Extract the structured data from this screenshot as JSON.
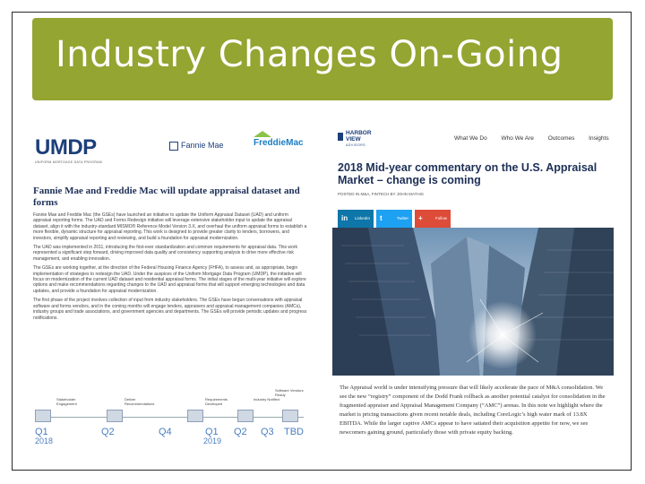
{
  "slide": {
    "title": "Industry Changes On-Going",
    "banner_color": "#94a531"
  },
  "left_panel": {
    "logos": {
      "umdp": "UMDP",
      "umdp_tagline": "UNIFORM MORTGAGE DATA PROGRAM",
      "fannie": "Fannie Mae",
      "freddie": "FreddieMac"
    },
    "heading": "Fannie Mae and Freddie Mac will update appraisal dataset and forms",
    "paragraphs": [
      "Fannie Mae and Freddie Mac (the GSEs) have launched an initiative to update the Uniform Appraisal Dataset (UAD) and uniform appraisal reporting forms. The UAD and Forms Redesign initiative will leverage extensive stakeholder input to update the appraisal dataset, align it with the industry-standard MISMO® Reference Model Version 3.X, and overhaul the uniform appraisal forms to establish a more flexible, dynamic structure for appraisal reporting. This work is designed to provide greater clarity to lenders, borrowers, and investors, simplify appraisal reporting and reviewing, and build a foundation for appraisal modernization.",
      "The UAD was implemented in 2011, introducing the first-ever standardization and common requirements for appraisal data. This work represented a significant step forward, driving improved data quality and consistency supporting analysis to drive more effective risk management, and enabling innovation.",
      "The GSEs are working together, at the direction of the Federal Housing Finance Agency (FHFA), to assess and, as appropriate, begin implementation of strategies to redesign the UAD. Under the auspices of the Uniform Mortgage Data Program (UMDP), the initiative will focus on modernization of the current UAD dataset and residential appraisal forms. The initial stages of the multi-year initiative will explore options and make recommendations regarding changes to the UAD and appraisal forms that will support emerging technologies and data updates, and provide a foundation for appraisal modernization.",
      "The first phase of the project involves collection of input from industry stakeholders. The GSEs have begun conversations with appraisal software and forms vendors, and in the coming months will engage lenders, appraisers and appraisal management companies (AMCs), industry groups and trade associations, and government agencies and departments. The GSEs will provide periodic updates and progress notifications."
    ],
    "timeline": {
      "notes": [
        "Stakeholder Engagement",
        "Deliver Recommendations",
        "Requirements Developed",
        "Industry Notified",
        "Software Vendors Ready"
      ],
      "quarters": [
        "Q1",
        "Q2",
        "Q4",
        "Q1",
        "Q2",
        "Q3",
        "TBD"
      ],
      "years": [
        "2018",
        "2019"
      ]
    }
  },
  "right_panel": {
    "brand": {
      "line1": "HARBOR",
      "line2": "VIEW",
      "line3": "ADVISORS"
    },
    "nav": [
      "What We Do",
      "Who We Are",
      "Outcomes",
      "Insights"
    ],
    "heading": "2018 Mid-year commentary on the U.S. Appraisal Market – change is coming",
    "posted": "POSTED IN M&A, FINTECH BY JOHN MATHIS",
    "share": [
      {
        "label": "LinkedIn",
        "icon": "in",
        "color": "#0e76a8"
      },
      {
        "label": "Twitter",
        "icon": "t",
        "color": "#1da1f2"
      },
      {
        "label": "Follow",
        "icon": "+",
        "color": "#dd4b39"
      }
    ],
    "article": "The Appraisal world is under intensifying pressure that will likely accelerate the pace of M&A consolidation. We see the new “registry” component of the Dodd Frank rollback as another potential catalyst for consolidation in the fragmented appraiser and Appraisal Management Company (“AMC”) arenas. In this note we highlight where the market is pricing transactions given recent notable deals, including CoreLogic’s high water mark of 13.8X EBITDA. While the larger captive AMCs appear to have satiated their acquisition appetite for now, we see newcomers gaining ground, particularly those with private equity backing."
  }
}
